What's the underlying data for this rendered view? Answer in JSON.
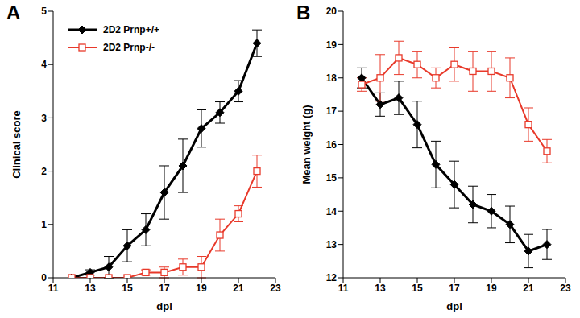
{
  "chart_data": [
    {
      "type": "line",
      "title": "A",
      "x_label": "dpi",
      "y_label": "Clinical score",
      "xlim": [
        11,
        23
      ],
      "xticks": [
        11,
        13,
        15,
        17,
        19,
        21,
        23
      ],
      "ylim": [
        0,
        5
      ],
      "yticks": [
        0,
        1,
        2,
        3,
        4,
        5
      ],
      "legend": "upper left",
      "x": [
        12,
        13,
        14,
        15,
        16,
        17,
        18,
        19,
        20,
        21,
        22
      ],
      "series": [
        {
          "name": "2D2 Prnp+/+",
          "color": "#000000",
          "marker": "diamond",
          "values": [
            0,
            0.1,
            0.2,
            0.6,
            0.9,
            1.6,
            2.1,
            2.8,
            3.1,
            3.5,
            4.4
          ],
          "errors": [
            0,
            0.05,
            0.2,
            0.3,
            0.3,
            0.5,
            0.5,
            0.35,
            0.2,
            0.2,
            0.25
          ]
        },
        {
          "name": "2D2 Prnp-/-",
          "color": "#e8392a",
          "marker": "square",
          "values": [
            0,
            0,
            0,
            0,
            0.1,
            0.1,
            0.2,
            0.2,
            0.8,
            1.2,
            2.0
          ],
          "errors": [
            0,
            0,
            0,
            0,
            0.05,
            0.1,
            0.15,
            0.2,
            0.3,
            0.15,
            0.3
          ]
        }
      ]
    },
    {
      "type": "line",
      "title": "B",
      "x_label": "dpi",
      "y_label": "Mean weight (g)",
      "xlim": [
        11,
        23
      ],
      "xticks": [
        11,
        13,
        15,
        17,
        19,
        21,
        23
      ],
      "ylim": [
        12,
        20
      ],
      "yticks": [
        12,
        13,
        14,
        15,
        16,
        17,
        18,
        19,
        20
      ],
      "x": [
        12,
        13,
        14,
        15,
        16,
        17,
        18,
        19,
        20,
        21,
        22
      ],
      "series": [
        {
          "color": "#000000",
          "marker": "diamond",
          "values": [
            18.0,
            17.2,
            17.4,
            16.6,
            15.4,
            14.8,
            14.2,
            14.0,
            13.6,
            12.8,
            13.0
          ],
          "errors": [
            0.3,
            0.35,
            0.5,
            0.7,
            0.7,
            0.7,
            0.55,
            0.5,
            0.55,
            0.5,
            0.45
          ]
        },
        {
          "color": "#e8392a",
          "marker": "square",
          "values": [
            17.8,
            18.0,
            18.6,
            18.4,
            18.0,
            18.4,
            18.2,
            18.2,
            18.0,
            16.6,
            15.8
          ],
          "errors": [
            0.2,
            0.7,
            0.5,
            0.4,
            0.3,
            0.5,
            0.6,
            0.6,
            0.6,
            0.5,
            0.35
          ]
        }
      ]
    }
  ]
}
